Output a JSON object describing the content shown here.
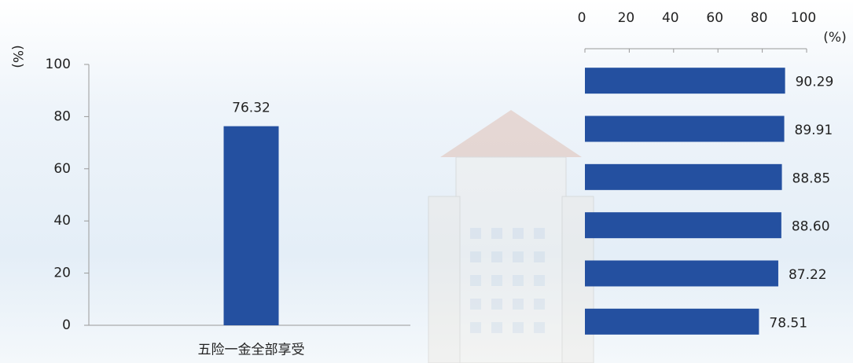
{
  "chart_data": [
    {
      "type": "bar",
      "y_label": "(%)",
      "categories": [
        "五险一金全部享受"
      ],
      "values": [
        76.32
      ],
      "color": "#2450a0",
      "ylim": [
        0,
        100
      ],
      "yticks": [
        0,
        20,
        40,
        60,
        80,
        100
      ]
    },
    {
      "type": "hbar",
      "x_label": "(%)",
      "categories": [
        null,
        null,
        null,
        null,
        null,
        null
      ],
      "values": [
        90.29,
        89.91,
        88.85,
        88.6,
        87.22,
        78.51
      ],
      "value_labels": [
        "90.29",
        "89.91",
        "88.85",
        "88.60",
        "87.22",
        "78.51"
      ],
      "color": "#2450a0",
      "xlim": [
        0,
        100
      ],
      "xticks": [
        0,
        20,
        40,
        60,
        80,
        100
      ]
    }
  ]
}
